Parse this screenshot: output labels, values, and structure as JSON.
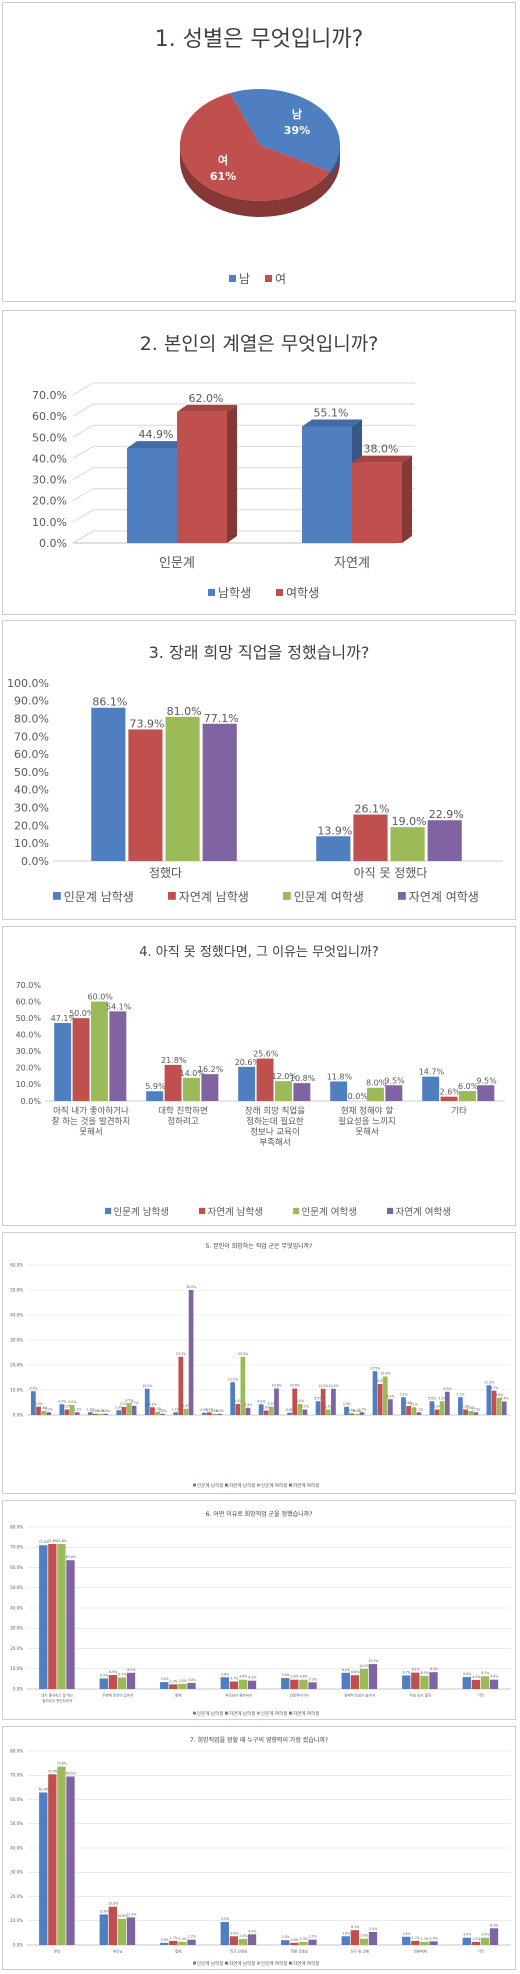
{
  "colors": {
    "male": "#4F7EC1",
    "female": "#C0504D",
    "humanities_male": "#4F7EC1",
    "science_male": "#C0504D",
    "humanities_female": "#9BBB59",
    "science_female": "#8064A2",
    "axis_text": "#595959",
    "gridline": "#D9D9D9"
  },
  "chart_data": [
    {
      "type": "pie",
      "title": "1. 성별은 무엇입니까?",
      "slices": [
        {
          "name": "남",
          "value": 39,
          "label": "39%"
        },
        {
          "name": "여",
          "value": 61,
          "label": "61%"
        }
      ],
      "legend": [
        "남",
        "여"
      ],
      "legend_position": "bottom",
      "style": "3d"
    },
    {
      "type": "bar",
      "style": "3d",
      "title": "2. 본인의 계열은 무엇입니까?",
      "categories": [
        "인문계",
        "자연계"
      ],
      "series": [
        {
          "name": "남학생",
          "values": [
            44.9,
            55.1
          ]
        },
        {
          "name": "여학생",
          "values": [
            62.0,
            38.0
          ]
        }
      ],
      "data_labels": [
        [
          "44.9%",
          "62.0%"
        ],
        [
          "55.1%",
          "38.0%"
        ]
      ],
      "yticks": [
        "0.0%",
        "10.0%",
        "20.0%",
        "30.0%",
        "40.0%",
        "50.0%",
        "60.0%",
        "70.0%"
      ],
      "ylim": [
        0,
        70
      ],
      "legend_position": "bottom"
    },
    {
      "type": "bar",
      "title": "3. 장래 희망 직업을 정했습니까?",
      "categories": [
        "정했다",
        "아직 못 정했다"
      ],
      "series": [
        {
          "name": "인문계 남학생",
          "values": [
            86.1,
            13.9
          ]
        },
        {
          "name": "자연계 남학생",
          "values": [
            73.9,
            26.1
          ]
        },
        {
          "name": "인문계 여학생",
          "values": [
            81.0,
            19.0
          ]
        },
        {
          "name": "자연계 여학생",
          "values": [
            77.1,
            22.9
          ]
        }
      ],
      "yticks": [
        "0.0%",
        "10.0%",
        "20.0%",
        "30.0%",
        "40.0%",
        "50.0%",
        "60.0%",
        "70.0%",
        "80.0%",
        "90.0%",
        "100.0%"
      ],
      "ylim": [
        0,
        100
      ],
      "legend_position": "bottom"
    },
    {
      "type": "bar",
      "title": "4. 아직 못 정했다면, 그 이유는 무엇입니까?",
      "categories": [
        [
          "아직 내가 좋아하거나",
          "잘 하는 것을 발견하지",
          "못해서"
        ],
        [
          "대학 진학하면",
          "정하려고"
        ],
        [
          "장래 희망 직업을",
          "정하는데 필요한",
          "정보나 교육이",
          "부족해서"
        ],
        [
          "현재 정해야 할",
          "필요성을 느끼지",
          "못해서"
        ],
        [
          "기타"
        ]
      ],
      "series": [
        {
          "name": "인문계 남학생",
          "values": [
            47.1,
            5.9,
            20.6,
            11.8,
            14.7
          ]
        },
        {
          "name": "자연계 남학생",
          "values": [
            50.0,
            21.8,
            25.6,
            0.0,
            2.6
          ]
        },
        {
          "name": "인문계 여학생",
          "values": [
            60.0,
            14.0,
            12.0,
            8.0,
            6.0
          ]
        },
        {
          "name": "자연계 여학생",
          "values": [
            54.1,
            16.2,
            10.8,
            9.5,
            9.5
          ]
        }
      ],
      "yticks": [
        "0.0%",
        "10.0%",
        "20.0%",
        "30.0%",
        "40.0%",
        "50.0%",
        "60.0%",
        "70.0%"
      ],
      "ylim": [
        0,
        70
      ],
      "legend_position": "bottom"
    },
    {
      "type": "bar",
      "title": "5. 본인이 희망하는 직업 군은 무엇입니까?",
      "series": [
        {
          "name": "인문계 남학생",
          "values": [
            9.5,
            4.3,
            1.1,
            1.9,
            10.5,
            1.1,
            0.9,
            13.1,
            4.3,
            0.9,
            5.5,
            3.3,
            17.5,
            7.1,
            5.5,
            7.1,
            11.9
          ]
        },
        {
          "name": "자연계 남학생",
          "values": [
            3.3,
            2.2,
            0.5,
            3.2,
            3.1,
            23.3,
            1.1,
            4.4,
            1.8,
            10.6,
            10.5,
            0.6,
            12.4,
            3.6,
            2.2,
            2.2,
            9.7
          ]
        },
        {
          "name": "인문계 여학생",
          "values": [
            1.6,
            4.0,
            0.5,
            4.7,
            1.3,
            2.5,
            0.5,
            23.3,
            3.3,
            4.4,
            2.2,
            0.4,
            15.4,
            3.1,
            5.5,
            1.6,
            6.8
          ]
        },
        {
          "name": "자연계 여학생",
          "values": [
            1.1,
            1.1,
            0.5,
            3.7,
            0.5,
            50.0,
            0.5,
            2.9,
            10.6,
            2.2,
            10.5,
            1.1,
            6.3,
            1.1,
            9.3,
            1.1,
            5.4
          ]
        }
      ],
      "yticks": [
        "0.0%",
        "10.0%",
        "20.0%",
        "30.0%",
        "40.0%",
        "50.0%",
        "60.0%"
      ],
      "ylim": [
        0,
        60
      ],
      "legend_position": "bottom"
    },
    {
      "type": "bar",
      "title": "6. 어떤 이유로 희망직업 군을 정했습니까?",
      "categories": [
        [
          "내가 좋아하고 잘 하는",
          "일이라고 판단되어서"
        ],
        [
          "주변에 조언이 있어서"
        ],
        [
          "명예"
        ],
        [
          "부모님이 원하셔서"
        ],
        [
          "안정적이어서"
        ],
        [
          "경제적 보상이 높아서"
        ],
        [
          "적성 검사 결과"
        ],
        [
          "기타"
        ]
      ],
      "series": [
        {
          "name": "인문계 남학생",
          "values": [
            71.0,
            5.2,
            3.4,
            5.8,
            5.4,
            8.0,
            6.7,
            5.9
          ]
        },
        {
          "name": "자연계 남학생",
          "values": [
            71.6,
            6.9,
            2.3,
            3.7,
            4.6,
            6.8,
            8.1,
            4.5
          ]
        },
        {
          "name": "인문계 여학생",
          "values": [
            71.6,
            5.7,
            2.5,
            4.6,
            4.6,
            10.0,
            6.5,
            6.3
          ]
        },
        {
          "name": "자연계 여학생",
          "values": [
            63.6,
            8.0,
            3.0,
            4.1,
            3.3,
            12.3,
            8.3,
            4.6
          ]
        }
      ],
      "yticks": [
        "0.0%",
        "10.0%",
        "20.0%",
        "30.0%",
        "40.0%",
        "50.0%",
        "60.0%",
        "70.0%",
        "80.0%"
      ],
      "ylim": [
        0,
        80
      ],
      "legend_position": "bottom"
    },
    {
      "type": "bar",
      "title": "7. 희망직업을 정할 때 누구의 영향력이 가장 컸습니까?",
      "categories": [
        "본인",
        "부모님",
        "형제",
        "학교 선생님",
        "학원 선생님",
        "친구 및 선배",
        "언론매체",
        "기타"
      ],
      "series": [
        {
          "name": "인문계 남학생",
          "values": [
            62.9,
            12.6,
            0.9,
            9.5,
            2.0,
            3.6,
            3.4,
            3.0
          ]
        },
        {
          "name": "자연계 남학생",
          "values": [
            70.4,
            15.8,
            1.7,
            3.6,
            0.9,
            6.1,
            1.7,
            1.3
          ]
        },
        {
          "name": "인문계 여학생",
          "values": [
            73.6,
            10.8,
            1.3,
            2.5,
            1.3,
            2.6,
            1.3,
            3.0
          ]
        },
        {
          "name": "자연계 여학생",
          "values": [
            69.5,
            11.4,
            2.2,
            4.4,
            2.2,
            5.4,
            1.5,
            6.9
          ]
        }
      ],
      "yticks": [
        "0.0%",
        "10.0%",
        "20.0%",
        "30.0%",
        "40.0%",
        "50.0%",
        "60.0%",
        "70.0%",
        "80.0%"
      ],
      "ylim": [
        0,
        80
      ],
      "legend_position": "bottom"
    }
  ]
}
